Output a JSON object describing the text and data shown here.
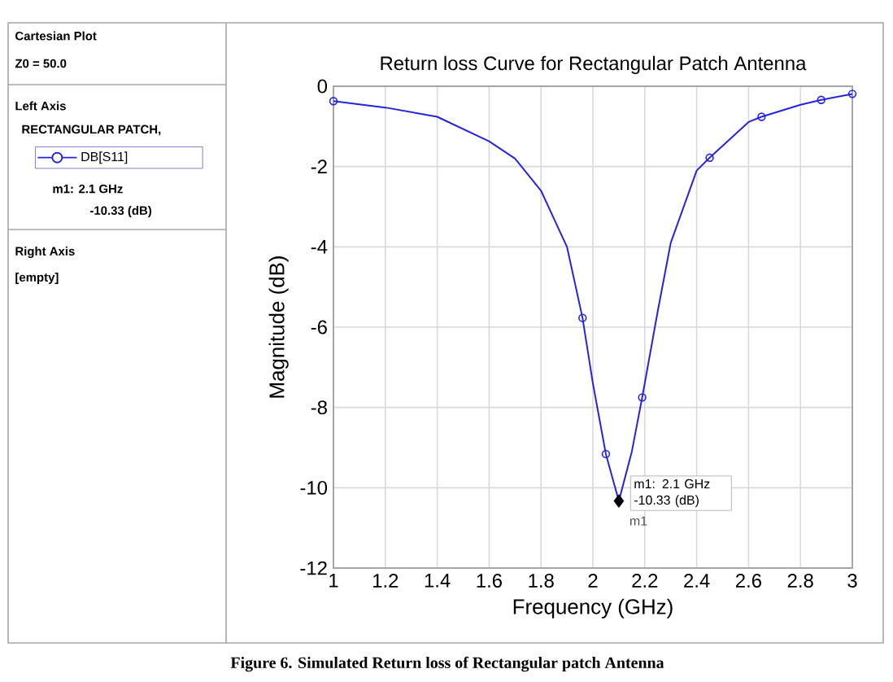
{
  "chart_data": {
    "type": "line",
    "title": "Return loss Curve for Rectangular Patch Antenna",
    "xlabel": "Frequency (GHz)",
    "ylabel": "Magnitude (dB)",
    "xlim": [
      1,
      3
    ],
    "ylim": [
      -12,
      0
    ],
    "xticks": [
      1,
      1.2,
      1.4,
      1.6,
      1.8,
      2,
      2.2,
      2.4,
      2.6,
      2.8,
      3
    ],
    "yticks": [
      -12,
      -10,
      -8,
      -6,
      -4,
      -2,
      0
    ],
    "grid": true,
    "legend": "left",
    "series": [
      {
        "name": "DB[S11]",
        "marker": "none",
        "color": "#2424e0",
        "x": [
          1,
          1.2,
          1.4,
          1.6,
          1.7,
          1.8,
          1.9,
          1.96,
          2.0,
          2.05,
          2.1,
          2.15,
          2.19,
          2.25,
          2.3,
          2.4,
          2.45,
          2.6,
          2.65,
          2.8,
          2.88,
          3.0
        ],
        "values": [
          -0.37,
          -0.53,
          -0.76,
          -1.37,
          -1.8,
          -2.6,
          -4.0,
          -5.77,
          -7.4,
          -9.16,
          -10.33,
          -9.1,
          -7.75,
          -5.6,
          -3.9,
          -2.1,
          -1.78,
          -0.89,
          -0.76,
          -0.46,
          -0.34,
          -0.19
        ]
      },
      {
        "type": "scatter",
        "marker": "circle",
        "color": "#2424e0",
        "x": [
          1,
          1.96,
          2.05,
          2.19,
          2.45,
          2.65,
          2.88,
          3.0
        ],
        "values": [
          -0.37,
          -5.77,
          -9.16,
          -7.75,
          -1.78,
          -0.76,
          -0.34,
          -0.19
        ]
      },
      {
        "type": "scatter",
        "marker": "diamond",
        "color": "#000000",
        "x": [
          2.1
        ],
        "values": [
          -10.33
        ]
      }
    ],
    "annotations": [
      "Cartesian Plot",
      "Z0 = 50.0",
      "Left Axis",
      "RECTANGULAR PATCH,",
      "m1: 2.1 GHz",
      "-10.33 (dB)",
      "Right Axis",
      "[empty]",
      {
        "text": "m1: 2.1 GHz -10.33 (dB)",
        "x": 2.1,
        "y": -10.33
      },
      {
        "text": "m1",
        "x": 2.1,
        "y": -10.33
      },
      "Figure 6. Simulated Return loss of Rectangular patch Antenna"
    ]
  }
}
